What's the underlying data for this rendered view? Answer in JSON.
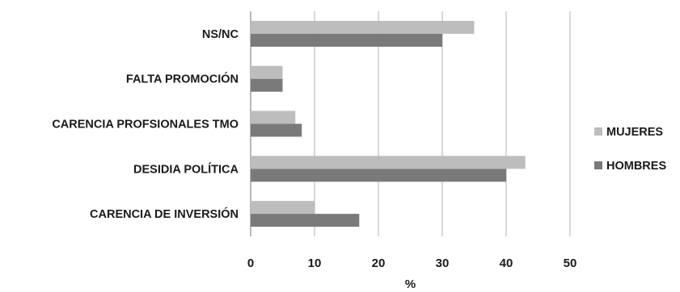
{
  "chart_data": {
    "type": "bar",
    "orientation": "horizontal",
    "categories": [
      "NS/NC",
      "FALTA PROMOCIÓN",
      "CARENCIA PROFSIONALES TMO",
      "DESIDIA POLÍTICA",
      "CARENCIA DE INVERSIÓN"
    ],
    "series": [
      {
        "name": "MUJERES",
        "color": "#bdbdbd",
        "values": [
          35,
          5,
          7,
          43,
          10
        ]
      },
      {
        "name": "HOMBRES",
        "color": "#7a7a7a",
        "values": [
          30,
          5,
          8,
          40,
          17
        ]
      }
    ],
    "xlabel": "%",
    "ylabel": "",
    "xlim": [
      0,
      50
    ],
    "xticks": [
      "0",
      "10",
      "20",
      "30",
      "40",
      "50"
    ],
    "grid": true,
    "legend_position": "right"
  }
}
